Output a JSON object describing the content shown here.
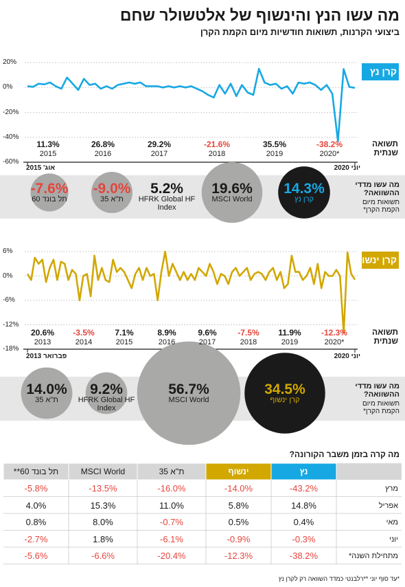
{
  "header": {
    "title": "מה עשו הנץ והינשוף של אלטשולר שחם",
    "subtitle": "ביצועי הקרנות, תשואות חודשיות מיום הקמת הקרן"
  },
  "chart_data": [
    {
      "type": "line",
      "title": "קרן נץ",
      "color": "#17a8e3",
      "values": [
        1,
        0.5,
        3,
        2.5,
        4,
        1,
        -1,
        8,
        3,
        -2,
        7,
        2,
        3,
        -1,
        1,
        -1,
        2,
        3,
        4,
        3,
        4,
        1,
        1,
        1,
        0,
        1,
        0,
        1,
        0,
        1,
        -1,
        -3,
        -6,
        -8,
        2,
        -5,
        3,
        -7,
        2,
        -4,
        -6,
        15,
        4,
        2,
        3,
        -1,
        1,
        -5,
        4,
        3,
        4,
        2,
        -2,
        2,
        -5,
        -43.2,
        14.8,
        0.4,
        -0.3
      ],
      "ylim": [
        -60,
        20
      ],
      "yticks": [
        {
          "value": 20,
          "label": "20%"
        },
        {
          "value": 0,
          "label": "0%"
        },
        {
          "value": -20,
          "label": "-20%"
        },
        {
          "value": -40,
          "label": "-40%"
        },
        {
          "value": -60,
          "label": "-60%"
        }
      ],
      "start_label": "אוג' 2015",
      "end_label": "יוני 2020",
      "annual": {
        "label": "תשואה שנתית",
        "categories": [
          "2015",
          "2016",
          "2017",
          "2018",
          "2019",
          "2020*"
        ],
        "values": [
          11.3,
          26.8,
          29.2,
          -21.6,
          35.5,
          -38.2
        ],
        "value_labels": [
          "11.3%",
          "26.8%",
          "29.2%",
          "-21.6%",
          "35.5%",
          "-38.2%"
        ]
      },
      "comparison": {
        "label": "מה עשו מדדי ההשוואה?",
        "sublabel": "תשואות מיום הקמת הקרן*",
        "items": [
          {
            "name": "קרן נץ",
            "value": 14.3,
            "value_label": "14.3%",
            "color": "#1a1a1a"
          },
          {
            "name": "MSCI World",
            "value": 19.6,
            "value_label": "19.6%",
            "color": "#a9a9a8"
          },
          {
            "name": "HFRK Global HF Index",
            "value": 5.2,
            "value_label": "5.2%",
            "color": "#e4e4e4"
          },
          {
            "name": "ת\"א 35",
            "value": -9.0,
            "value_label": "-9.0%",
            "color": "#a9a9a8"
          },
          {
            "name": "תל בונד 60",
            "value": -7.6,
            "value_label": "-7.6%",
            "color": "#a9a9a8"
          }
        ]
      }
    },
    {
      "type": "line",
      "title": "קרן ינשוף",
      "color": "#d1a700",
      "values": [
        0.5,
        -1,
        4.5,
        3,
        4,
        -1.5,
        2,
        4,
        -1,
        3.5,
        3,
        -1,
        1.5,
        0.5,
        -6,
        0,
        0.5,
        -5,
        5,
        -1,
        2,
        -1,
        -1.5,
        4,
        1,
        2,
        1,
        -1,
        -3,
        0.5,
        2,
        -1,
        2,
        0,
        0.5,
        -6,
        1,
        6,
        0,
        3,
        1,
        -1,
        1,
        -1,
        0.5,
        -1,
        2,
        1,
        0,
        3,
        1,
        -2,
        0.5,
        0,
        -2,
        1,
        2,
        0,
        1,
        2,
        -1,
        0.5,
        1,
        0.5,
        -1,
        1,
        2,
        -1,
        1,
        -3,
        -2,
        5,
        1,
        1,
        -1,
        0,
        2,
        -2,
        3,
        -3,
        1,
        0,
        0,
        1.5,
        0,
        -14.0,
        5.8,
        0.5,
        -0.9
      ],
      "ylim": [
        -18,
        6
      ],
      "yticks": [
        {
          "value": 6,
          "label": "6%"
        },
        {
          "value": 0,
          "label": "0%"
        },
        {
          "value": -6,
          "label": "-6%"
        },
        {
          "value": -12,
          "label": "-12%"
        },
        {
          "value": -18,
          "label": "-18%"
        }
      ],
      "start_label": "פברואר 2013",
      "end_label": "יוני 2020",
      "annual": {
        "label": "תשואה שנתית",
        "categories": [
          "2013",
          "2014",
          "2015",
          "2016",
          "2017",
          "2018",
          "2019",
          "2020*"
        ],
        "values": [
          20.6,
          -3.5,
          7.1,
          8.9,
          9.6,
          -7.5,
          11.9,
          -12.3
        ],
        "value_labels": [
          "20.6%",
          "-3.5%",
          "7.1%",
          "8.9%",
          "9.6%",
          "-7.5%",
          "11.9%",
          "-12.3%"
        ]
      },
      "comparison": {
        "label": "מה עשו מדדי ההשוואה?",
        "sublabel": "תשואות מיום הקמת הקרן*",
        "items": [
          {
            "name": "קרן ינשוף",
            "value": 34.5,
            "value_label": "34.5%",
            "color": "#1a1a1a"
          },
          {
            "name": "MSCI World",
            "value": 56.7,
            "value_label": "56.7%",
            "color": "#a9a9a8"
          },
          {
            "name": "HFRK Global HF Index",
            "value": 9.2,
            "value_label": "9.2%",
            "color": "#a9a9a8"
          },
          {
            "name": "ת\"א 35",
            "value": 14.0,
            "value_label": "14.0%",
            "color": "#a9a9a8"
          }
        ]
      }
    }
  ],
  "table": {
    "title": "מה קרה בזמן משבר הקורונה?",
    "columns": [
      "נץ",
      "ינשוף",
      "ת\"א 35",
      "MSCI World",
      "תל בונד 60**"
    ],
    "column_colors": [
      "#17a8e3",
      "#d1a700",
      "#d6d6d6",
      "#d6d6d6",
      "#d6d6d6"
    ],
    "rows": [
      {
        "label": "מרץ",
        "cells": [
          "-43.2%",
          "-14.0%",
          "-16.0%",
          "-13.5%",
          "-5.8%"
        ]
      },
      {
        "label": "אפריל",
        "cells": [
          "14.8%",
          "5.8%",
          "11.0%",
          "15.3%",
          "4.0%"
        ]
      },
      {
        "label": "מאי",
        "cells": [
          "0.4%",
          "0.5%",
          "-0.7%",
          "8.0%",
          "0.8%"
        ]
      },
      {
        "label": "יוני",
        "cells": [
          "-0.3%",
          "-0.9%",
          "-6.1%",
          "1.8%",
          "-2.7%"
        ]
      },
      {
        "label": "מתחילת השנה*",
        "cells": [
          "-38.2%",
          "-12.3%",
          "-20.4%",
          "-6.6%",
          "-5.6%"
        ]
      }
    ]
  },
  "footnote": "*עד סוף יוני **רלבנטי כמדד השוואה רק לקרן נץ"
}
